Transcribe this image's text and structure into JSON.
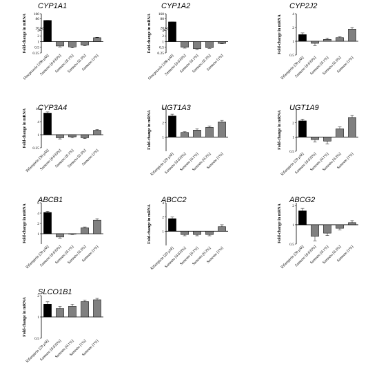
{
  "colors": {
    "control": "#000000",
    "treated": "#808080",
    "axis": "#000000"
  },
  "chart_data": [
    {
      "type": "bar",
      "title": "CYP1A1",
      "ylabel": "Fold-change in mRNA",
      "yscale": "log-broken",
      "yticks": [
        "160",
        "80",
        "20",
        "4",
        "2",
        "1",
        "0.5",
        "0.25"
      ],
      "categories": [
        "Omeprazole [100 µM]",
        "Sameeto [0.033%]",
        "Sameeto [0.1%]",
        "Sameeto [0.3%]",
        "Sameeto [1%]"
      ],
      "values": [
        60,
        0.58,
        0.52,
        0.65,
        1.6
      ],
      "errors": [
        0.1,
        0.06,
        0.06,
        0.05,
        0.08
      ]
    },
    {
      "type": "bar",
      "title": "CYP1A2",
      "ylabel": "Fold-change in mRNA",
      "yscale": "log-broken",
      "yticks": [
        "160",
        "80",
        "20",
        "4",
        "2",
        "1",
        "0.5",
        "0.25"
      ],
      "categories": [
        "Omeprazole [100 µM]",
        "Sameeto [0.033%]",
        "Sameeto [0.1%]",
        "Sameeto [0.3%]",
        "Sameeto [1%]"
      ],
      "values": [
        48,
        0.5,
        0.42,
        0.48,
        0.8
      ],
      "errors": [
        0.1,
        0.05,
        0.05,
        0.04,
        0.03
      ]
    },
    {
      "type": "bar",
      "title": "CYP2J2",
      "ylabel": "Fold-change in mRNA",
      "yscale": "log",
      "yticks": [
        "4",
        "2",
        "1",
        "0.5"
      ],
      "ylim": [
        0.5,
        4
      ],
      "categories": [
        "Rifampicin [20 µM]",
        "Sameeto [0.033%]",
        "Sameeto [0.1%]",
        "Sameeto [0.3%]",
        "Sameeto [1%]"
      ],
      "values": [
        1.4,
        0.9,
        1.1,
        1.2,
        1.85
      ],
      "errors": [
        0.12,
        0.1,
        0.08,
        0.06,
        0.15
      ]
    },
    {
      "type": "bar",
      "title": "CYP3A4",
      "ylabel": "Fold-change in mRNA",
      "yscale": "log",
      "yticks": [
        "16",
        "4",
        "1",
        "0.25"
      ],
      "ylim": [
        0.25,
        16
      ],
      "categories": [
        "Rifampicin [20 µM]",
        "Sameeto [0.033%]",
        "Sameeto [0.1%]",
        "Sameeto [0.3%]",
        "Sameeto [1%]"
      ],
      "values": [
        10,
        0.72,
        0.8,
        0.72,
        1.6
      ],
      "errors": [
        1.2,
        0.08,
        0.08,
        0.06,
        0.15
      ]
    },
    {
      "type": "bar",
      "title": "UGT1A3",
      "ylabel": "Fold-change in mRNA",
      "yscale": "log",
      "yticks": [
        "4",
        "2",
        "1"
      ],
      "ylim": [
        0.5,
        4
      ],
      "categories": [
        "Rifampicin [20 µM]",
        "Sameeto [0.033%]",
        "Sameeto [0.1%]",
        "Sameeto [0.3%]",
        "Sameeto [1%]"
      ],
      "values": [
        2.8,
        1.25,
        1.4,
        1.6,
        2.1
      ],
      "errors": [
        0.25,
        0.05,
        0.1,
        0.12,
        0.15
      ]
    },
    {
      "type": "bar",
      "title": "UGT1A9",
      "ylabel": "Fold-change in mRNA",
      "yscale": "log",
      "yticks": [
        "4",
        "2",
        "1",
        "0.5"
      ],
      "ylim": [
        0.5,
        4
      ],
      "categories": [
        "Rifampicin [20 µM]",
        "Sameeto [0.033%]",
        "Sameeto [0.1%]",
        "Sameeto [0.3%]",
        "Sameeto [1%]"
      ],
      "values": [
        2.2,
        0.88,
        0.82,
        1.5,
        2.6
      ],
      "errors": [
        0.2,
        0.1,
        0.1,
        0.15,
        0.3
      ]
    },
    {
      "type": "bar",
      "title": "ABCB1",
      "ylabel": "Fold-change in mRNA",
      "yscale": "log",
      "yticks": [
        "8",
        "4",
        "2",
        "1"
      ],
      "ylim": [
        0.5,
        8
      ],
      "categories": [
        "Rifampicin [20 µM]",
        "Sameeto [0.033%]",
        "Sameeto [0.1%]",
        "Sameeto [0.3%]",
        "Sameeto [1%]"
      ],
      "values": [
        4.2,
        0.8,
        0.98,
        1.5,
        2.5
      ],
      "errors": [
        0.3,
        0.05,
        0.03,
        0.08,
        0.25
      ]
    },
    {
      "type": "bar",
      "title": "ABCC2",
      "ylabel": "Fold-change in mRNA",
      "yscale": "log",
      "yticks": [
        "4",
        "2",
        "1"
      ],
      "ylim": [
        0.5,
        4
      ],
      "categories": [
        "Rifampicin [20 µM]",
        "Sameeto [0.033%]",
        "Sameeto [0.1%]",
        "Sameeto [0.3%]",
        "Sameeto [1%]"
      ],
      "values": [
        1.85,
        0.85,
        0.85,
        0.85,
        1.25
      ],
      "errors": [
        0.15,
        0.05,
        0.05,
        0.05,
        0.12
      ]
    },
    {
      "type": "bar",
      "title": "ABCG2",
      "ylabel": "Fold-change in mRNA",
      "yscale": "log",
      "yticks": [
        "2",
        "1",
        "0.5"
      ],
      "ylim": [
        0.5,
        2.2
      ],
      "categories": [
        "Rifampicin [20 µM]",
        "Sameeto [0.033%]",
        "Sameeto [0.1%]",
        "Sameeto [0.3%]",
        "Sameeto [1%]"
      ],
      "values": [
        1.65,
        0.66,
        0.74,
        0.88,
        1.08
      ],
      "errors": [
        0.15,
        0.1,
        0.06,
        0.05,
        0.08
      ]
    },
    {
      "type": "bar",
      "title": "SLCO1B1",
      "ylabel": "Fold-change in mRNA",
      "yscale": "log",
      "yticks": [
        "2",
        "1",
        "0.5"
      ],
      "ylim": [
        0.5,
        2
      ],
      "categories": [
        "Rifampicin [20 µM]",
        "Sameeto [0.033%]",
        "Sameeto [0.1%]",
        "Sameeto [1%]",
        "Sameeto [1%]"
      ],
      "values": [
        1.52,
        1.32,
        1.42,
        1.65,
        1.75
      ],
      "errors": [
        0.12,
        0.1,
        0.1,
        0.08,
        0.08
      ]
    }
  ]
}
